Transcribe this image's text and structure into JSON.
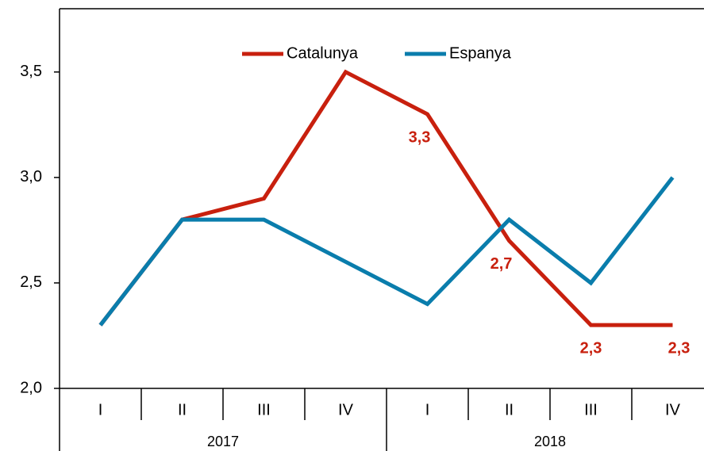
{
  "chart_data": {
    "type": "line",
    "categories": [
      "I",
      "II",
      "III",
      "IV",
      "I",
      "II",
      "III",
      "IV"
    ],
    "group_labels": [
      "2017",
      "2018"
    ],
    "series": [
      {
        "name": "Catalunya",
        "color": "#c8200e",
        "values": [
          2.3,
          2.8,
          2.9,
          3.5,
          3.3,
          2.7,
          2.3,
          2.3
        ],
        "value_labels": [
          null,
          null,
          null,
          null,
          "3,3",
          "2,7",
          "2,3",
          "2,3"
        ]
      },
      {
        "name": "Espanya",
        "color": "#0a7dac",
        "values": [
          2.3,
          2.8,
          2.8,
          2.6,
          2.4,
          2.8,
          2.5,
          3.0
        ]
      }
    ],
    "ylim": [
      2.0,
      3.8
    ],
    "yticks": [
      {
        "value": 2.0,
        "label": "2,0"
      },
      {
        "value": 2.5,
        "label": "2,5"
      },
      {
        "value": 3.0,
        "label": "3,0"
      },
      {
        "value": 3.5,
        "label": "3,5"
      }
    ],
    "legend": "top"
  }
}
